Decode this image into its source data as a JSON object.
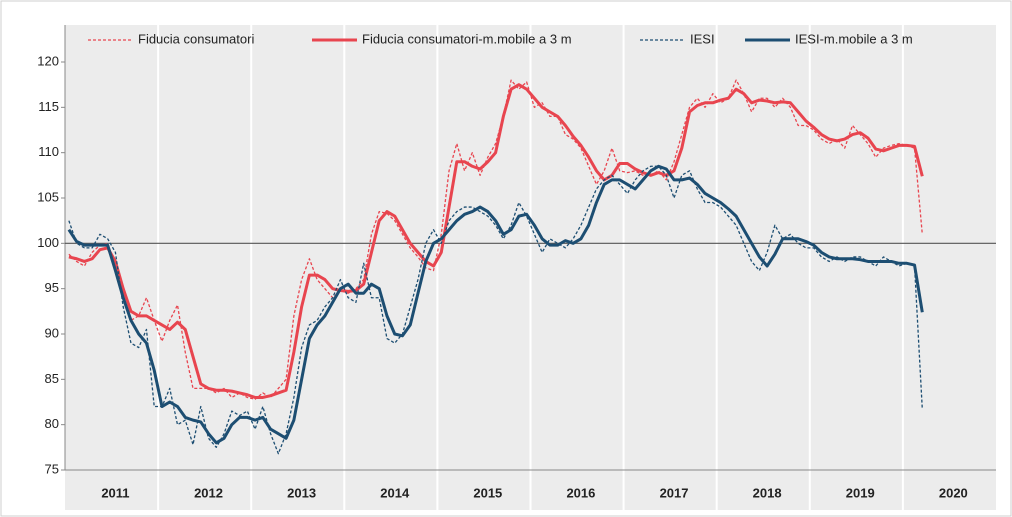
{
  "chart_data": {
    "type": "line",
    "categories": [
      null,
      null,
      null,
      null,
      null,
      null,
      "2011",
      null,
      null,
      null,
      null,
      null,
      null,
      null,
      null,
      null,
      null,
      null,
      "2012",
      null,
      null,
      null,
      null,
      null,
      null,
      null,
      null,
      null,
      null,
      null,
      "2013",
      null,
      null,
      null,
      null,
      null,
      null,
      null,
      null,
      null,
      null,
      null,
      "2014",
      null,
      null,
      null,
      null,
      null,
      null,
      null,
      null,
      null,
      null,
      null,
      "2015",
      null,
      null,
      null,
      null,
      null,
      null,
      null,
      null,
      null,
      null,
      null,
      "2016",
      null,
      null,
      null,
      null,
      null,
      null,
      null,
      null,
      null,
      null,
      null,
      "2017",
      null,
      null,
      null,
      null,
      null,
      null,
      null,
      null,
      null,
      null,
      null,
      "2018",
      null,
      null,
      null,
      null,
      null,
      null,
      null,
      null,
      null,
      null,
      null,
      "2019",
      null,
      null,
      null,
      null,
      null,
      null,
      null,
      null,
      null,
      null,
      null,
      "2020",
      null,
      null,
      null,
      null,
      null
    ],
    "series": [
      {
        "name": "Fiducia consumatori",
        "color": "#e8454f",
        "dashed": true,
        "width": 1.3,
        "values": [
          98.8,
          98,
          97.5,
          99,
          99.8,
          100,
          97.5,
          94,
          91.5,
          92,
          94,
          91.5,
          89.2,
          91.5,
          93.2,
          88,
          84,
          84,
          84,
          83.5,
          84,
          83,
          83.5,
          83,
          82.8,
          83.5,
          83,
          84,
          85,
          92,
          96,
          98.3,
          96,
          95,
          94,
          94.8,
          94.5,
          95,
          96,
          101,
          103.5,
          103.3,
          102.5,
          101,
          99.5,
          98.5,
          97.3,
          97,
          101,
          108,
          111,
          108,
          110,
          107.5,
          109.5,
          111,
          114,
          118,
          117,
          117.8,
          115,
          115.5,
          114,
          114,
          112,
          111.5,
          110.5,
          108.5,
          106.5,
          108,
          110.5,
          108,
          107.8,
          108,
          107.5,
          107.5,
          108,
          107,
          109,
          112,
          115,
          116,
          115,
          116.5,
          115.5,
          116,
          118,
          116.5,
          114.5,
          116,
          116,
          115,
          116,
          115,
          113,
          113,
          112.5,
          111.5,
          111,
          111.5,
          110.5,
          113,
          112,
          111,
          109.5,
          110.5,
          110.8,
          111,
          110.8,
          110.5,
          101,
          null,
          null,
          null,
          null,
          null,
          null,
          null,
          null,
          null
        ]
      },
      {
        "name": "Fiducia consumatori-m.mobile a 3 m",
        "color": "#e8454f",
        "dashed": false,
        "width": 3,
        "values": [
          98.5,
          98.3,
          98,
          98.3,
          99.3,
          99.5,
          98,
          95,
          92.5,
          92,
          92,
          91.5,
          91,
          90.5,
          91.3,
          90.5,
          87.5,
          84.5,
          84,
          83.8,
          83.8,
          83.7,
          83.5,
          83.3,
          83,
          83,
          83.2,
          83.5,
          83.8,
          88,
          93,
          96.5,
          96.5,
          96,
          95,
          94.8,
          94.7,
          94.8,
          95.5,
          99,
          102.5,
          103.5,
          103,
          101.5,
          100,
          99,
          98,
          97.5,
          99,
          104,
          109,
          109,
          108.5,
          108.2,
          109,
          110,
          114,
          117,
          117.5,
          117,
          116,
          115,
          114.5,
          114,
          113,
          111.8,
          110.8,
          109.5,
          108,
          107,
          107.5,
          108.8,
          108.8,
          108.2,
          107.8,
          107.5,
          107.8,
          107.5,
          108,
          110.5,
          114.5,
          115.2,
          115.5,
          115.5,
          115.8,
          116,
          117,
          116.5,
          115.5,
          115.8,
          115.7,
          115.5,
          115.6,
          115.5,
          114.5,
          113.5,
          112.8,
          112,
          111.5,
          111.3,
          111.5,
          112,
          112.2,
          111.6,
          110.4,
          110.2,
          110.5,
          110.8,
          110.8,
          110.7,
          107.4,
          null,
          null,
          null,
          null,
          null,
          null,
          null,
          null,
          null
        ]
      },
      {
        "name": "IESI",
        "color": "#1d4e72",
        "dashed": true,
        "width": 1.3,
        "values": [
          102.5,
          100,
          99.5,
          99.5,
          101,
          100.5,
          99,
          93,
          89,
          88.5,
          90.5,
          82,
          82,
          84,
          80,
          80.5,
          77.8,
          82,
          78.5,
          77.5,
          79,
          81.5,
          81,
          81.5,
          79.5,
          82,
          79,
          76.8,
          79,
          83,
          88.5,
          91,
          91.5,
          93,
          94,
          96,
          94,
          93.5,
          97.8,
          94,
          94,
          89.5,
          89,
          90,
          93,
          96,
          100,
          101.5,
          100,
          102.5,
          103.5,
          104,
          104,
          103.5,
          103,
          102,
          100.5,
          102,
          104.5,
          103,
          101,
          99,
          100.5,
          100,
          99.5,
          100.5,
          102,
          104,
          106,
          107,
          107.5,
          106.5,
          105.5,
          107,
          108,
          108.5,
          108.5,
          107.5,
          105,
          107.5,
          108,
          106,
          104.5,
          104.5,
          104,
          103,
          102,
          100,
          98,
          97,
          99,
          102,
          100.5,
          101,
          100,
          99.5,
          99.5,
          98.5,
          98,
          98.5,
          98,
          98.5,
          98.5,
          98,
          97.5,
          98.5,
          98,
          97.5,
          97.8,
          97.5,
          81.7,
          null,
          null,
          null,
          null,
          null,
          null,
          null,
          null,
          null
        ]
      },
      {
        "name": "IESI-m.mobile a 3 m",
        "color": "#1d4e72",
        "dashed": false,
        "width": 3,
        "values": [
          101.5,
          100.2,
          99.8,
          99.8,
          99.8,
          99.8,
          97,
          94,
          91.5,
          90,
          89,
          86,
          82,
          82.5,
          82,
          80.8,
          80.5,
          80.3,
          79,
          78,
          78.5,
          80,
          80.8,
          80.8,
          80.5,
          80.8,
          79.5,
          79,
          78.5,
          80.5,
          85,
          89.5,
          91,
          92,
          93.5,
          95,
          95.5,
          94.5,
          94.5,
          95.5,
          95,
          92,
          90,
          89.8,
          91,
          94.5,
          98,
          100,
          100.5,
          101.5,
          102.5,
          103.2,
          103.5,
          104,
          103.5,
          102.5,
          101,
          101.5,
          103,
          103.2,
          102,
          100.5,
          99.8,
          99.8,
          100.3,
          100,
          100.5,
          102,
          104.5,
          106.5,
          107,
          107,
          106.5,
          106,
          107,
          108,
          108.5,
          108.2,
          107,
          107,
          107.2,
          106.5,
          105.5,
          105,
          104.5,
          103.8,
          103,
          101.5,
          100,
          98.5,
          97.5,
          98.8,
          100.5,
          100.5,
          100.5,
          100.2,
          99.8,
          99,
          98.5,
          98.3,
          98.3,
          98.3,
          98.2,
          98,
          98,
          98,
          98,
          97.8,
          97.8,
          97.6,
          92.4,
          null,
          null,
          null,
          null,
          null,
          null,
          null,
          null,
          null
        ]
      }
    ],
    "ylim": [
      75,
      120
    ],
    "yticks": [
      75,
      80,
      85,
      90,
      95,
      100,
      105,
      110,
      115,
      120
    ],
    "grid": false,
    "hline": 100,
    "legend": "top"
  }
}
